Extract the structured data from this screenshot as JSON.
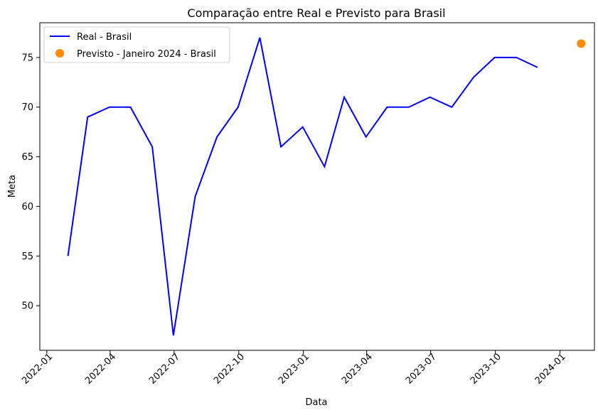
{
  "chart_data": {
    "type": "line",
    "title": "Comparação entre Real e Previsto para Brasil",
    "xlabel": "Data",
    "ylabel": "Meta",
    "x_axis_type": "date",
    "xlim": [
      "2021-12-22",
      "2024-02-19"
    ],
    "ylim": [
      45.5,
      78.5
    ],
    "x_ticks": [
      "2022-01-01",
      "2022-04-01",
      "2022-07-01",
      "2022-10-01",
      "2023-01-01",
      "2023-04-01",
      "2023-07-01",
      "2023-10-01",
      "2024-01-01"
    ],
    "x_tick_labels": [
      "2022-01",
      "2022-04",
      "2022-07",
      "2022-10",
      "2023-01",
      "2023-04",
      "2023-07",
      "2023-10",
      "2024-01"
    ],
    "y_ticks": [
      50,
      55,
      60,
      65,
      70,
      75
    ],
    "y_tick_labels": [
      "50",
      "55",
      "60",
      "65",
      "70",
      "75"
    ],
    "grid": false,
    "legend_position": "top-left",
    "series": [
      {
        "name": "Real - Brasil",
        "kind": "line",
        "color": "#0000ff",
        "x": [
          "2022-01-31",
          "2022-02-28",
          "2022-03-31",
          "2022-04-30",
          "2022-05-31",
          "2022-06-30",
          "2022-07-31",
          "2022-08-31",
          "2022-09-30",
          "2022-10-31",
          "2022-11-30",
          "2022-12-31",
          "2023-01-31",
          "2023-02-28",
          "2023-03-31",
          "2023-04-30",
          "2023-05-31",
          "2023-06-30",
          "2023-07-31",
          "2023-08-31",
          "2023-09-30",
          "2023-10-31",
          "2023-11-30"
        ],
        "y": [
          55,
          69,
          70,
          70,
          66,
          47,
          61,
          67,
          70,
          77,
          66,
          68,
          64,
          71,
          67,
          70,
          70,
          71,
          70,
          73,
          75,
          75,
          74
        ]
      },
      {
        "name": "Previsto - Janeiro 2024 - Brasil",
        "kind": "scatter",
        "color": "#ff8c00",
        "x": [
          "2024-01-31"
        ],
        "y": [
          76.4
        ]
      }
    ]
  }
}
